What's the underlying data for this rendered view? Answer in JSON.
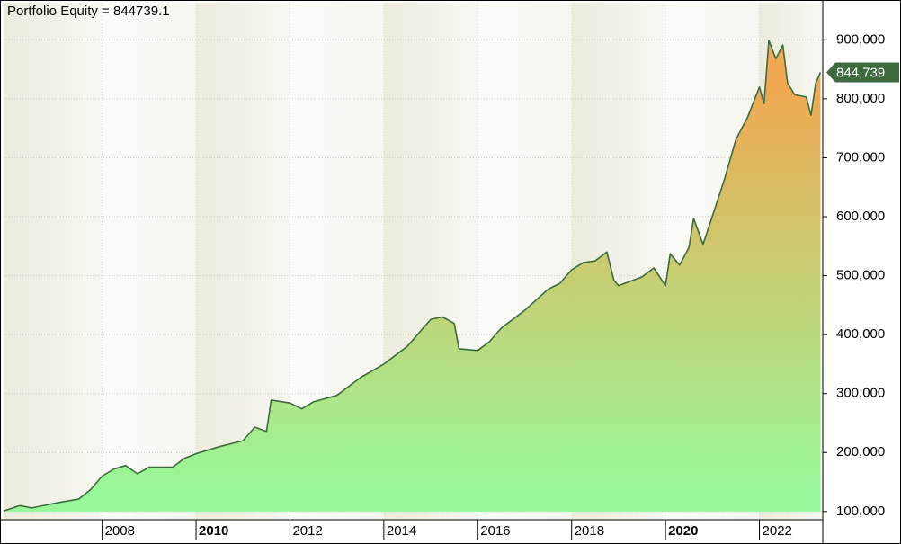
{
  "chart_data": {
    "type": "area",
    "title": "Portfolio Equity = 844739.1",
    "x": [
      2005.9,
      2006.25,
      2006.5,
      2007.0,
      2007.5,
      2007.75,
      2008.0,
      2008.25,
      2008.5,
      2008.75,
      2009.0,
      2009.5,
      2009.75,
      2010.0,
      2010.5,
      2011.0,
      2011.25,
      2011.5,
      2011.6,
      2012.0,
      2012.25,
      2012.5,
      2013.0,
      2013.5,
      2014.0,
      2014.5,
      2014.75,
      2015.0,
      2015.25,
      2015.5,
      2015.6,
      2016.0,
      2016.25,
      2016.5,
      2017.0,
      2017.5,
      2017.75,
      2018.0,
      2018.25,
      2018.5,
      2018.75,
      2018.9,
      2019.0,
      2019.5,
      2019.75,
      2020.0,
      2020.1,
      2020.3,
      2020.5,
      2020.6,
      2020.8,
      2021.0,
      2021.25,
      2021.5,
      2021.75,
      2022.0,
      2022.1,
      2022.2,
      2022.35,
      2022.5,
      2022.6,
      2022.75,
      2023.0,
      2023.1,
      2023.2,
      2023.3
    ],
    "values": [
      101000,
      110000,
      106000,
      114000,
      121000,
      137000,
      160000,
      172000,
      178000,
      164000,
      175000,
      175000,
      190000,
      198000,
      210000,
      220000,
      243000,
      236000,
      289000,
      284000,
      274000,
      286000,
      297000,
      327000,
      350000,
      380000,
      403000,
      426000,
      430000,
      419000,
      376000,
      373000,
      388000,
      411000,
      441000,
      477000,
      487000,
      510000,
      522000,
      525000,
      540000,
      492000,
      483000,
      498000,
      513000,
      483000,
      537000,
      518000,
      548000,
      597000,
      553000,
      601000,
      662000,
      731000,
      769000,
      820000,
      792000,
      899000,
      868000,
      891000,
      827000,
      807000,
      803000,
      772000,
      827000,
      844739
    ],
    "last_value_label": "844,739",
    "color": "#3d6b3d",
    "fill_top": "#f0a850",
    "fill_bottom": "#98f898",
    "xlim": [
      2005.9,
      2023.35
    ],
    "xticks": [
      2008,
      2010,
      2012,
      2014,
      2016,
      2018,
      2020,
      2022
    ],
    "ylim": [
      86000,
      963000
    ],
    "yticks": [
      {
        "value": 100000,
        "label": "100,000"
      },
      {
        "value": 200000,
        "label": "200,000"
      },
      {
        "value": 300000,
        "label": "300,000"
      },
      {
        "value": 400000,
        "label": "400,000"
      },
      {
        "value": 500000,
        "label": "500,000"
      },
      {
        "value": 600000,
        "label": "600,000"
      },
      {
        "value": 700000,
        "label": "700,000"
      },
      {
        "value": 800000,
        "label": "800,000"
      },
      {
        "value": 900000,
        "label": "900,000"
      }
    ],
    "grid": true
  }
}
